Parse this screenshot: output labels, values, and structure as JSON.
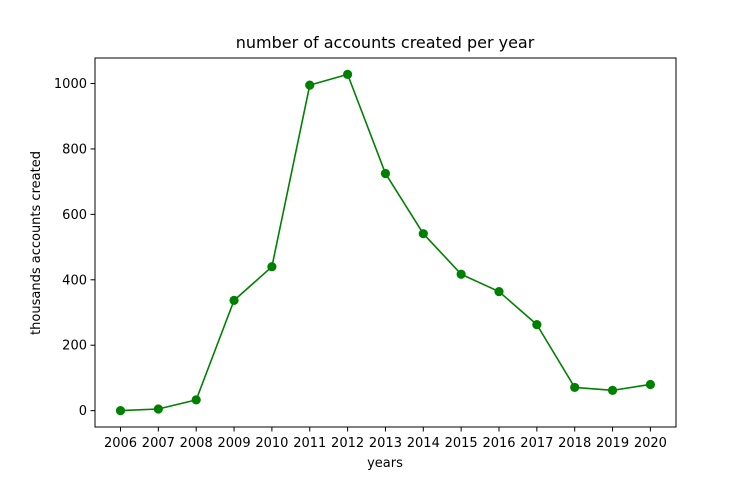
{
  "chart_data": {
    "type": "line",
    "title": "number of accounts created per year",
    "xlabel": "years",
    "ylabel": "thousands accounts created",
    "x": [
      "2006",
      "2007",
      "2008",
      "2009",
      "2010",
      "2011",
      "2012",
      "2013",
      "2014",
      "2015",
      "2016",
      "2017",
      "2018",
      "2019",
      "2020"
    ],
    "series": [
      {
        "values": [
          0,
          5,
          33,
          337,
          440,
          995,
          1028,
          725,
          541,
          417,
          364,
          263,
          71,
          62,
          80
        ],
        "color": "#008000",
        "marker": "circle"
      }
    ],
    "ylim": [
      -50,
      1078
    ],
    "yticks": [
      0,
      200,
      400,
      600,
      800,
      1000
    ],
    "grid": false,
    "legend": "none"
  }
}
